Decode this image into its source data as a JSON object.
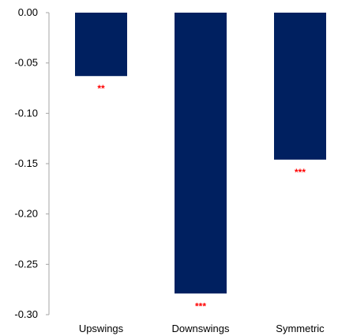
{
  "chart_data": {
    "type": "bar",
    "title": "",
    "xlabel": "",
    "ylabel": "",
    "categories": [
      "Upswings",
      "Downswings",
      "Symmetric"
    ],
    "values": [
      -0.063,
      -0.279,
      -0.146
    ],
    "annotations": [
      "**",
      "***",
      "***"
    ],
    "ylim": [
      -0.3,
      0.0
    ],
    "yticks": [
      0.0,
      -0.05,
      -0.1,
      -0.15,
      -0.2,
      -0.25,
      -0.3
    ],
    "ytick_labels": [
      "0.00",
      "-0.05",
      "-0.10",
      "-0.15",
      "-0.20",
      "-0.25",
      "-0.30"
    ],
    "grid": false,
    "legend": "none",
    "colors": {
      "bar": "#002060",
      "annotation": "#ff0000",
      "axis": "#a6a6a6"
    }
  }
}
